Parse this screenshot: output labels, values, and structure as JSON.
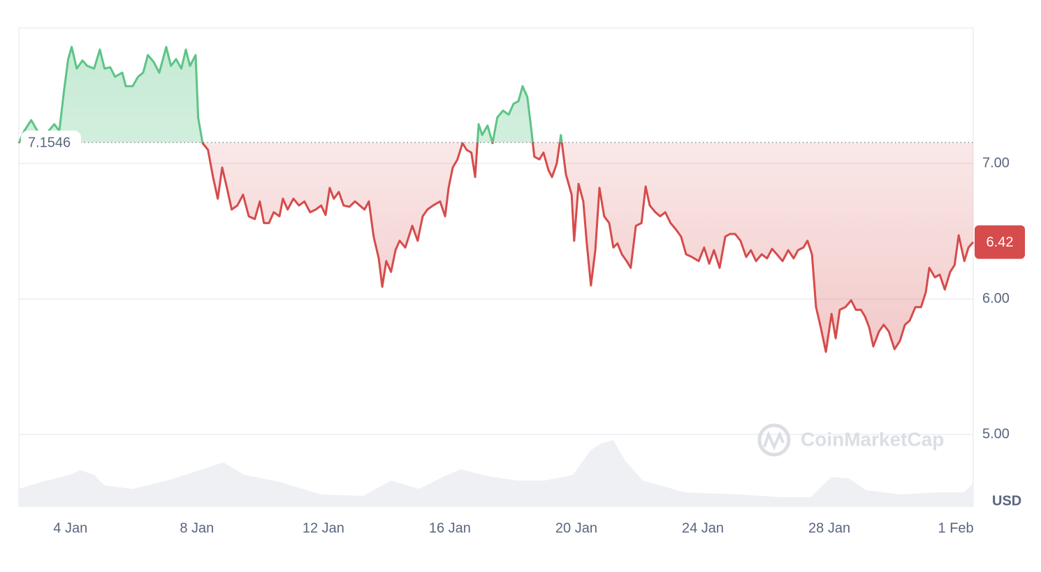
{
  "chart_data": {
    "type": "line",
    "x": [
      2.37,
      2.54,
      2.76,
      2.98,
      3.2,
      3.49,
      3.65,
      3.8,
      3.93,
      4.04,
      4.2,
      4.38,
      4.53,
      4.75,
      4.93,
      5.08,
      5.26,
      5.41,
      5.64,
      5.75,
      5.97,
      6.14,
      6.3,
      6.45,
      6.63,
      6.81,
      7.03,
      7.18,
      7.34,
      7.51,
      7.65,
      7.78,
      7.96,
      8.04,
      8.18,
      8.35,
      8.51,
      8.66,
      8.8,
      8.95,
      9.1,
      9.28,
      9.46,
      9.64,
      9.83,
      9.99,
      10.12,
      10.28,
      10.43,
      10.61,
      10.72,
      10.87,
      11.05,
      11.23,
      11.4,
      11.58,
      11.76,
      11.93,
      12.07,
      12.2,
      12.33,
      12.49,
      12.64,
      12.82,
      13.0,
      13.15,
      13.3,
      13.44,
      13.59,
      13.75,
      13.86,
      13.99,
      14.14,
      14.28,
      14.41,
      14.59,
      14.81,
      14.98,
      15.14,
      15.29,
      15.47,
      15.69,
      15.85,
      15.96,
      16.09,
      16.24,
      16.4,
      16.53,
      16.68,
      16.8,
      16.91,
      17.02,
      17.19,
      17.35,
      17.5,
      17.68,
      17.86,
      18.01,
      18.17,
      18.3,
      18.45,
      18.56,
      18.67,
      18.83,
      18.96,
      19.12,
      19.23,
      19.38,
      19.51,
      19.67,
      19.85,
      19.93,
      20.07,
      20.22,
      20.33,
      20.46,
      20.6,
      20.73,
      20.88,
      21.04,
      21.17,
      21.3,
      21.44,
      21.59,
      21.72,
      21.88,
      22.06,
      22.19,
      22.32,
      22.5,
      22.65,
      22.81,
      22.98,
      23.16,
      23.31,
      23.47,
      23.65,
      23.87,
      24.04,
      24.2,
      24.35,
      24.53,
      24.71,
      24.86,
      25.02,
      25.19,
      25.37,
      25.52,
      25.68,
      25.86,
      26.03,
      26.19,
      26.34,
      26.52,
      26.7,
      26.87,
      27.01,
      27.18,
      27.31,
      27.45,
      27.58,
      27.73,
      27.89,
      28.07,
      28.2,
      28.33,
      28.51,
      28.69,
      28.84,
      29.0,
      29.13,
      29.26,
      29.39,
      29.57,
      29.72,
      29.88,
      30.06,
      30.23,
      30.39,
      30.54,
      30.72,
      30.9,
      31.05,
      31.16,
      31.34,
      31.49,
      31.65,
      31.82,
      31.96,
      32.09,
      32.27,
      32.4,
      32.55
    ],
    "series": [
      {
        "color_up": "#5cc486",
        "color_down": "#d64b4b",
        "values": [
          7.15,
          7.24,
          7.32,
          7.23,
          7.21,
          7.29,
          7.24,
          7.54,
          7.77,
          7.86,
          7.7,
          7.76,
          7.72,
          7.7,
          7.84,
          7.7,
          7.71,
          7.64,
          7.67,
          7.57,
          7.57,
          7.64,
          7.67,
          7.8,
          7.75,
          7.67,
          7.86,
          7.72,
          7.77,
          7.7,
          7.84,
          7.72,
          7.8,
          7.34,
          7.15,
          7.1,
          6.9,
          6.74,
          6.97,
          6.82,
          6.66,
          6.69,
          6.77,
          6.61,
          6.59,
          6.72,
          6.56,
          6.56,
          6.64,
          6.61,
          6.74,
          6.66,
          6.74,
          6.69,
          6.72,
          6.64,
          6.66,
          6.69,
          6.62,
          6.82,
          6.74,
          6.79,
          6.69,
          6.68,
          6.72,
          6.69,
          6.66,
          6.72,
          6.46,
          6.3,
          6.09,
          6.28,
          6.2,
          6.36,
          6.43,
          6.38,
          6.54,
          6.43,
          6.61,
          6.66,
          6.69,
          6.72,
          6.61,
          6.82,
          6.97,
          7.03,
          7.15,
          7.1,
          7.08,
          6.9,
          7.29,
          7.21,
          7.28,
          7.15,
          7.34,
          7.39,
          7.36,
          7.44,
          7.46,
          7.57,
          7.49,
          7.28,
          7.05,
          7.03,
          7.08,
          6.95,
          6.9,
          7.0,
          7.21,
          6.92,
          6.77,
          6.43,
          6.85,
          6.72,
          6.41,
          6.1,
          6.36,
          6.82,
          6.61,
          6.56,
          6.38,
          6.41,
          6.33,
          6.28,
          6.23,
          6.54,
          6.56,
          6.83,
          6.69,
          6.64,
          6.61,
          6.64,
          6.56,
          6.51,
          6.46,
          6.33,
          6.31,
          6.28,
          6.38,
          6.26,
          6.36,
          6.23,
          6.46,
          6.48,
          6.48,
          6.43,
          6.31,
          6.36,
          6.28,
          6.33,
          6.3,
          6.37,
          6.33,
          6.28,
          6.36,
          6.3,
          6.36,
          6.38,
          6.43,
          6.33,
          5.94,
          5.79,
          5.61,
          5.89,
          5.71,
          5.92,
          5.94,
          5.99,
          5.92,
          5.92,
          5.87,
          5.79,
          5.65,
          5.76,
          5.81,
          5.76,
          5.63,
          5.69,
          5.81,
          5.84,
          5.94,
          5.94,
          6.05,
          6.23,
          6.16,
          6.18,
          6.07,
          6.2,
          6.25,
          6.47,
          6.28,
          6.38,
          6.42
        ]
      }
    ],
    "volume": {
      "axis": "y2",
      "color": "#eef0f4",
      "x": [
        2.37,
        3.09,
        3.98,
        4.31,
        4.75,
        5.08,
        5.97,
        7.07,
        7.96,
        8.84,
        9.5,
        10.61,
        11.93,
        13.26,
        14.14,
        15.03,
        15.91,
        16.35,
        17.24,
        18.12,
        19.01,
        19.89,
        20.44,
        20.77,
        21.17,
        21.55,
        22.1,
        23.43,
        25.19,
        26.52,
        27.4,
        28.07,
        28.62,
        29.17,
        30.27,
        31.37,
        32.25,
        32.55
      ],
      "values": [
        25,
        35,
        45,
        52,
        45,
        30,
        25,
        37,
        50,
        63,
        45,
        35,
        17,
        15,
        37,
        25,
        45,
        53,
        43,
        37,
        37,
        45,
        80,
        90,
        95,
        65,
        37,
        20,
        17,
        13,
        13,
        42,
        40,
        23,
        17,
        20,
        20,
        33
      ]
    },
    "xlim": [
      2.37,
      32.55
    ],
    "xticks": [
      {
        "value": 4,
        "label": "4 Jan"
      },
      {
        "value": 8,
        "label": "8 Jan"
      },
      {
        "value": 12,
        "label": "12 Jan"
      },
      {
        "value": 16,
        "label": "16 Jan"
      },
      {
        "value": 20,
        "label": "20 Jan"
      },
      {
        "value": 24,
        "label": "24 Jan"
      },
      {
        "value": 28,
        "label": "28 Jan"
      },
      {
        "value": 32,
        "label": "1 Feb"
      }
    ],
    "ylim": [
      4.47,
      8.0
    ],
    "yticks": [
      {
        "value": 5,
        "label": "5.00"
      },
      {
        "value": 6,
        "label": "6.00"
      },
      {
        "value": 7,
        "label": "7.00"
      }
    ],
    "y2lim": [
      0,
      685
    ],
    "y_unit": "USD",
    "baseline": 7.1546,
    "last_price": 6.42,
    "watermark": "CoinMarketCap",
    "grid": true
  }
}
